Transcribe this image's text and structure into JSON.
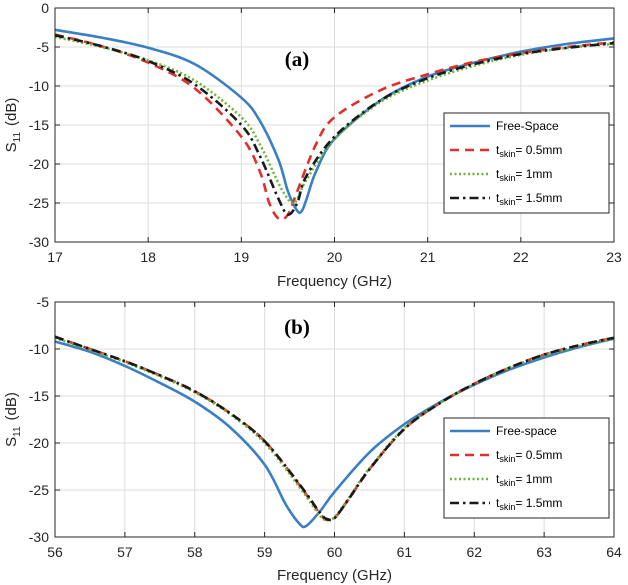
{
  "chart_data": [
    {
      "type": "line",
      "panel_label": "(a)",
      "xlabel": "Frequency (GHz)",
      "ylabel": {
        "main": "S",
        "sub": "11",
        "unit": "(dB)"
      },
      "xlim": [
        17,
        23
      ],
      "ylim": [
        -30,
        0
      ],
      "xticks": [
        "17",
        "18",
        "19",
        "20",
        "21",
        "22",
        "23"
      ],
      "yticks": [
        "0",
        "-5",
        "-10",
        "-15",
        "-20",
        "-25",
        "-30"
      ],
      "grid": true,
      "legend_position": "bottom-right",
      "series": [
        {
          "name": "Free-Space",
          "color": "#3a7fc4",
          "style": "solid",
          "x": [
            17,
            17.5,
            18,
            18.5,
            19,
            19.2,
            19.4,
            19.5,
            19.6,
            19.65,
            19.7,
            19.8,
            20,
            20.5,
            21,
            21.5,
            22,
            22.5,
            23
          ],
          "y": [
            -2.8,
            -3.8,
            -5.1,
            -7.2,
            -11.5,
            -14.5,
            -19.5,
            -23.5,
            -26.0,
            -26.0,
            -24.5,
            -21.0,
            -16.8,
            -11.8,
            -8.8,
            -7.0,
            -5.6,
            -4.6,
            -3.9
          ]
        },
        {
          "name": "t_skin = 0.5mm",
          "label_main": "t",
          "label_sub": "skin",
          "label_rest": "= 0.5mm",
          "color": "#e0302e",
          "style": "dashed",
          "x": [
            17,
            17.5,
            18,
            18.5,
            19,
            19.2,
            19.3,
            19.4,
            19.5,
            19.6,
            19.8,
            20,
            20.5,
            21,
            21.5,
            22,
            22.5,
            23
          ],
          "y": [
            -3.4,
            -4.9,
            -7.0,
            -10.3,
            -16.5,
            -21.0,
            -25.0,
            -27.0,
            -26.5,
            -23.5,
            -17.5,
            -14.0,
            -10.5,
            -8.5,
            -6.9,
            -5.8,
            -5.0,
            -4.4
          ]
        },
        {
          "name": "t_skin = 1mm",
          "label_main": "t",
          "label_sub": "skin",
          "label_rest": "= 1mm",
          "color": "#6ab83a",
          "style": "dotted",
          "x": [
            17,
            17.5,
            18,
            18.5,
            19,
            19.2,
            19.4,
            19.5,
            19.55,
            19.6,
            19.7,
            20,
            20.5,
            21,
            21.5,
            22,
            22.5,
            23
          ],
          "y": [
            -3.7,
            -5.0,
            -6.7,
            -9.3,
            -14.0,
            -17.5,
            -22.5,
            -24.5,
            -25.0,
            -24.5,
            -22.0,
            -16.8,
            -12.0,
            -9.3,
            -7.4,
            -6.0,
            -5.1,
            -4.6
          ]
        },
        {
          "name": "t_skin = 1.5mm",
          "label_main": "t",
          "label_sub": "skin",
          "label_rest": "= 1.5mm",
          "color": "#1a1a1a",
          "style": "dashdot",
          "x": [
            17,
            17.5,
            18,
            18.5,
            19,
            19.2,
            19.4,
            19.5,
            19.6,
            19.7,
            20,
            20.5,
            21,
            21.5,
            22,
            22.5,
            23
          ],
          "y": [
            -3.5,
            -4.9,
            -6.8,
            -9.8,
            -15.0,
            -19.0,
            -24.5,
            -26.5,
            -25.0,
            -21.5,
            -16.5,
            -11.8,
            -9.0,
            -7.2,
            -5.9,
            -5.1,
            -4.5
          ]
        }
      ]
    },
    {
      "type": "line",
      "panel_label": "(b)",
      "xlabel": "Frequency (GHz)",
      "ylabel": {
        "main": "S",
        "sub": "11",
        "unit": "(dB)"
      },
      "xlim": [
        56,
        64
      ],
      "ylim": [
        -30,
        -5
      ],
      "xticks": [
        "56",
        "57",
        "58",
        "59",
        "60",
        "61",
        "62",
        "63",
        "64"
      ],
      "yticks": [
        "-5",
        "-10",
        "-15",
        "-20",
        "-25",
        "-30"
      ],
      "grid": true,
      "legend_position": "bottom-right",
      "series": [
        {
          "name": "Free-space",
          "color": "#3a7fc4",
          "style": "solid",
          "x": [
            56,
            56.5,
            57,
            57.5,
            58,
            58.5,
            59,
            59.3,
            59.5,
            59.6,
            59.8,
            60,
            60.5,
            61,
            61.5,
            62,
            62.5,
            63,
            63.5,
            64
          ],
          "y": [
            -9.2,
            -10.3,
            -11.8,
            -13.6,
            -15.6,
            -18.3,
            -22.3,
            -26.5,
            -28.6,
            -28.8,
            -27.2,
            -25.2,
            -21.0,
            -18.0,
            -15.7,
            -13.8,
            -12.2,
            -10.9,
            -9.8,
            -8.9
          ]
        },
        {
          "name": "t_skin = 0.5mm",
          "label_main": "t",
          "label_sub": "skin",
          "label_rest": "= 0.5mm",
          "color": "#e0302e",
          "style": "dashed",
          "x": [
            56,
            56.5,
            57,
            57.5,
            58,
            58.5,
            59,
            59.5,
            59.8,
            59.9,
            60,
            60.2,
            60.5,
            61,
            61.5,
            62,
            62.5,
            63,
            63.5,
            64
          ],
          "y": [
            -8.7,
            -10.0,
            -11.3,
            -12.8,
            -14.5,
            -16.8,
            -19.8,
            -24.5,
            -27.6,
            -28.2,
            -28.0,
            -26.0,
            -22.8,
            -18.5,
            -15.8,
            -13.7,
            -12.0,
            -10.6,
            -9.6,
            -8.8
          ]
        },
        {
          "name": "t_skin = 1mm",
          "label_main": "t",
          "label_sub": "skin",
          "label_rest": "= 1mm",
          "color": "#6ab83a",
          "style": "dotted",
          "x": [
            56,
            56.5,
            57,
            57.5,
            58,
            58.5,
            59,
            59.5,
            59.8,
            59.9,
            60,
            60.2,
            60.5,
            61,
            61.5,
            62,
            62.5,
            63,
            63.5,
            64
          ],
          "y": [
            -8.8,
            -10.1,
            -11.4,
            -12.9,
            -14.6,
            -16.9,
            -20.0,
            -24.7,
            -27.8,
            -28.1,
            -27.9,
            -25.9,
            -22.7,
            -18.4,
            -15.8,
            -13.7,
            -12.0,
            -10.7,
            -9.7,
            -8.9
          ]
        },
        {
          "name": "t_skin = 1.5mm",
          "label_main": "t",
          "label_sub": "skin",
          "label_rest": "= 1.5mm",
          "color": "#1a1a1a",
          "style": "dashdot",
          "x": [
            56,
            56.5,
            57,
            57.5,
            58,
            58.5,
            59,
            59.5,
            59.8,
            59.9,
            60,
            60.2,
            60.5,
            61,
            61.5,
            62,
            62.5,
            63,
            63.5,
            64
          ],
          "y": [
            -8.7,
            -10.0,
            -11.3,
            -12.8,
            -14.5,
            -16.8,
            -19.8,
            -24.4,
            -27.5,
            -28.1,
            -28.0,
            -26.0,
            -22.8,
            -18.5,
            -15.8,
            -13.7,
            -12.0,
            -10.6,
            -9.6,
            -8.8
          ]
        }
      ]
    }
  ]
}
